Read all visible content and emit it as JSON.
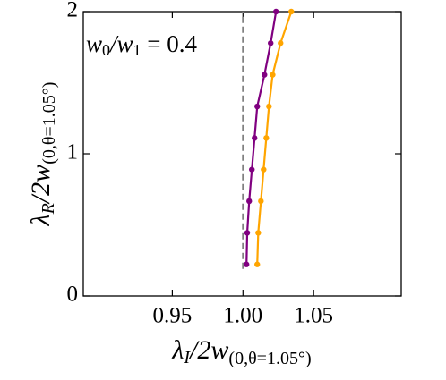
{
  "chart_data": {
    "type": "line",
    "annotation": [
      "w",
      "0",
      "/w",
      "1",
      " = 0.4"
    ],
    "xlabel": [
      "λ",
      "I",
      "/2w",
      "(0,θ=1.05°)"
    ],
    "ylabel": [
      "λ",
      "R",
      "/2w",
      "(0,θ=1.05°)"
    ],
    "series": [
      {
        "color": "#800080",
        "x": [
          1.0025,
          1.003,
          1.0044,
          1.0063,
          1.0082,
          1.0101,
          1.0152,
          1.0196,
          1.0234
        ],
        "values": [
          0.222,
          0.444,
          0.667,
          0.889,
          1.111,
          1.333,
          1.556,
          1.778,
          2.0
        ]
      },
      {
        "color": "#ffa500",
        "x": [
          1.0101,
          1.0108,
          1.0127,
          1.0146,
          1.0165,
          1.0184,
          1.021,
          1.0266,
          1.0342
        ],
        "values": [
          0.222,
          0.444,
          0.667,
          0.889,
          1.111,
          1.333,
          1.556,
          1.778,
          2.0
        ]
      }
    ],
    "vline": {
      "x": 1.0,
      "ymin": 0.19,
      "color": "#808080"
    },
    "xlim": [
      0.887,
      1.112
    ],
    "ylim": [
      0,
      2
    ],
    "xticks": [
      0.95,
      {
        "value": 1.0,
        "label": "1.00"
      },
      1.05
    ],
    "yticks": [
      0,
      1,
      2
    ]
  }
}
